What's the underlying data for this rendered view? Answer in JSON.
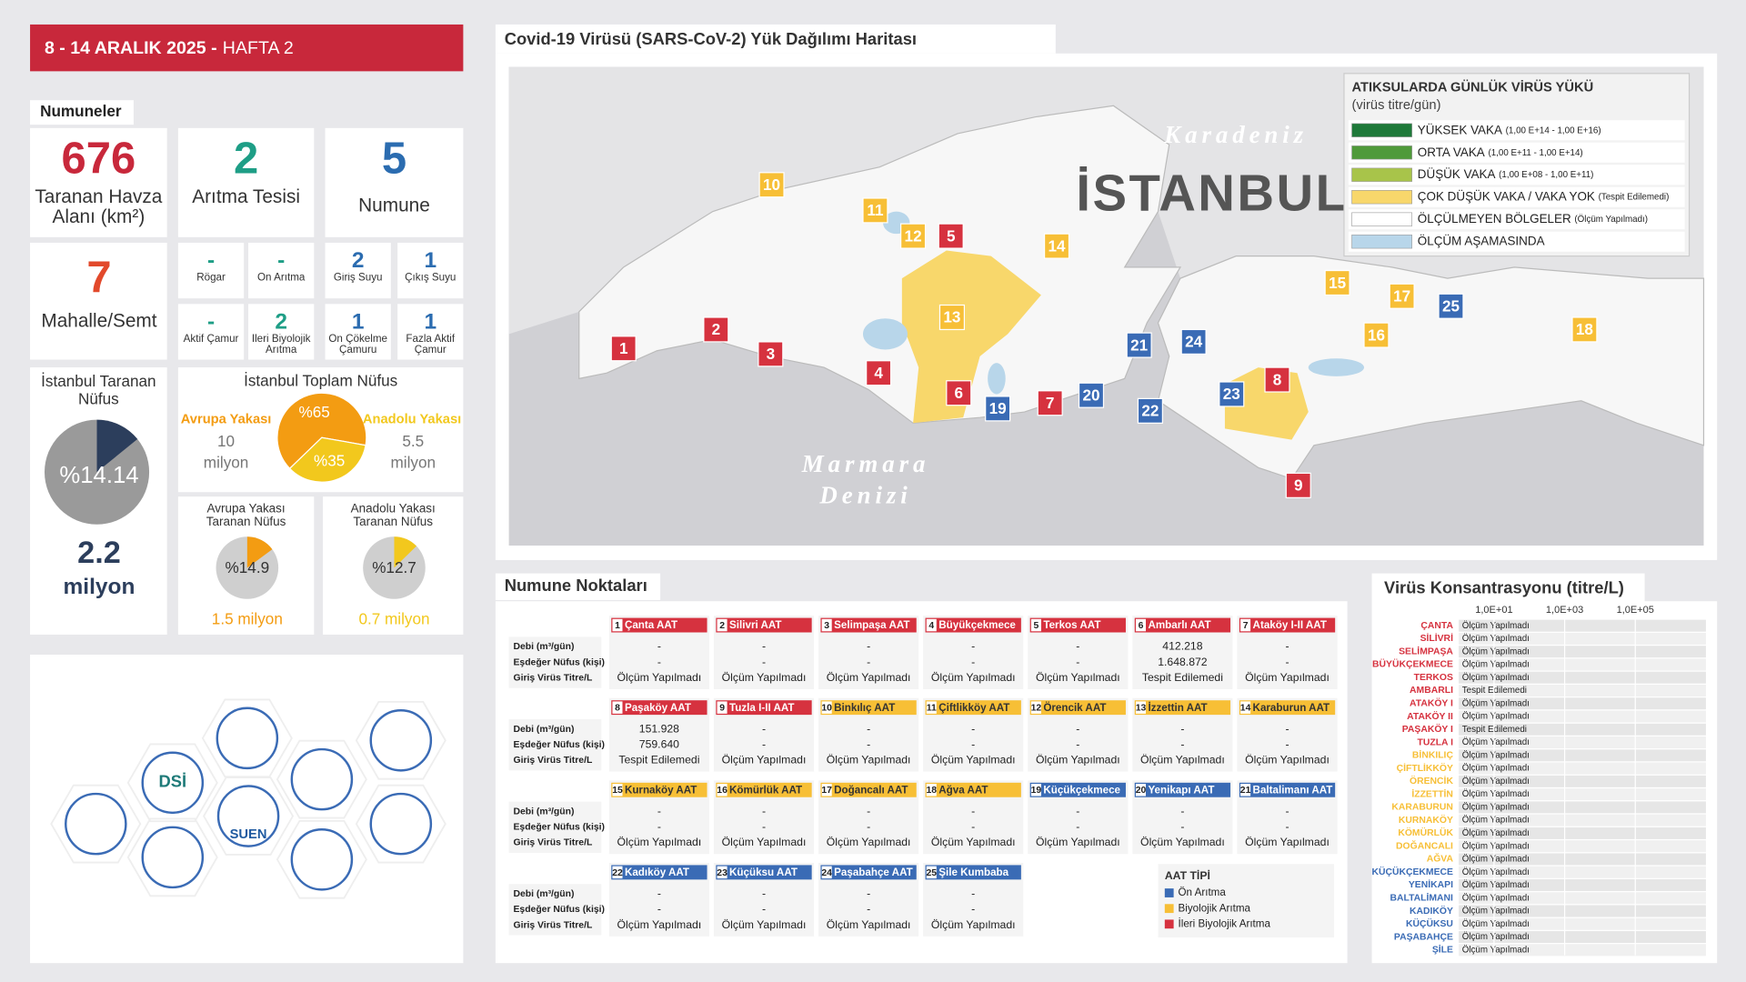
{
  "header": {
    "date": "8 - 14 ARALIK 2025 -",
    "week": "HAFTA 2"
  },
  "samples": {
    "title": "Numuneler",
    "main": [
      {
        "value": "676",
        "label": "Taranan Havza Alanı (km²)"
      },
      {
        "value": "2",
        "label": "Arıtma Tesisi"
      },
      {
        "value": "5",
        "label": "Numune"
      }
    ],
    "districts": {
      "value": "7",
      "label": "Mahalle/Semt"
    },
    "types": [
      {
        "value": "-",
        "label": "Rögar"
      },
      {
        "value": "-",
        "label": "Ön Arıtma"
      },
      {
        "value": "2",
        "label": "Giriş Suyu"
      },
      {
        "value": "1",
        "label": "Çıkış Suyu"
      },
      {
        "value": "-",
        "label": "Aktif Çamur"
      },
      {
        "value": "2",
        "label": "İleri Biyolojik Arıtma"
      },
      {
        "value": "1",
        "label": "Ön Çökelme Çamuru"
      },
      {
        "value": "1",
        "label": "Fazla Aktif Çamur"
      }
    ]
  },
  "population": {
    "screened": {
      "title": "İstanbul Taranan Nüfus",
      "value": 14.14,
      "value_label": "%14.14",
      "amount": "2.2",
      "unit": "milyon",
      "color": "#2c3e5c"
    },
    "total": {
      "title": "İstanbul Toplam Nüfus",
      "slices": [
        {
          "name": "Avrupa Yakası",
          "value": 65,
          "value_label": "%65",
          "amount": "10 milyon",
          "color": "#f39c12"
        },
        {
          "name": "Anadolu Yakası",
          "value": 35,
          "value_label": "%35",
          "amount": "5.5 milyon",
          "color": "#f2c81d"
        }
      ]
    },
    "sides": [
      {
        "title": "Avrupa Yakası Taranan Nüfus",
        "value": 14.9,
        "value_label": "%14.9",
        "amount": "1.5 milyon",
        "color": "#f39c12"
      },
      {
        "title": "Anadolu Yakası Taranan Nüfus",
        "value": 12.7,
        "value_label": "%12.7",
        "amount": "0.7 milyon",
        "color": "#f2c81d"
      }
    ]
  },
  "partners": {
    "labels": [
      "DSİ",
      "SUEN"
    ]
  },
  "map": {
    "title": "Covid-19 Virüsü (SARS-CoV-2) Yük Dağılımı Haritası",
    "labels": {
      "sea_north": "Karadeniz",
      "city": "İSTANBUL",
      "sea_south": "Marmara Denizi"
    },
    "legend": {
      "title": "ATIKSULARDA GÜNLÜK VİRÜS YÜKÜ",
      "subtitle": "(virüs titre/gün)",
      "items": [
        {
          "name": "YÜKSEK VAKA",
          "note": "(1,00 E+14 - 1,00 E+16)",
          "color": "#1f7a3a"
        },
        {
          "name": "ORTA VAKA",
          "note": "(1,00 E+11 - 1,00 E+14)",
          "color": "#4f9a3a"
        },
        {
          "name": "DÜŞÜK VAKA",
          "note": "(1,00 E+08 - 1,00 E+11)",
          "color": "#a8c44a"
        },
        {
          "name": "ÇOK DÜŞÜK VAKA / VAKA YOK",
          "note": "(Tespit Edilemedi)",
          "color": "#f8d76b"
        },
        {
          "name": "ÖLÇÜLMEYEN BÖLGELER",
          "note": "(Ölçüm Yapılmadı)",
          "color": "#ffffff"
        },
        {
          "name": "ÖLÇÜM AŞAMASINDA",
          "color": "#b8d6ea"
        }
      ]
    }
  },
  "stations": {
    "title": "Numune Noktaları",
    "row_labels": [
      "Debi (m³/gün)",
      "Eşdeğer Nüfus (kişi)",
      "Giriş Virüs Titre/L"
    ],
    "plants": [
      {
        "id": "1",
        "name": "Çanta AAT",
        "type": 2,
        "values": [
          "-",
          "-",
          "Ölçüm Yapılmadı"
        ]
      },
      {
        "id": "2",
        "name": "Silivri AAT",
        "type": 2,
        "values": [
          "-",
          "-",
          "Ölçüm Yapılmadı"
        ]
      },
      {
        "id": "3",
        "name": "Selimpaşa AAT",
        "type": 2,
        "values": [
          "-",
          "-",
          "Ölçüm Yapılmadı"
        ]
      },
      {
        "id": "4",
        "name": "Büyükçekmece",
        "type": 2,
        "values": [
          "-",
          "-",
          "Ölçüm Yapılmadı"
        ]
      },
      {
        "id": "5",
        "name": "Terkos AAT",
        "type": 2,
        "values": [
          "-",
          "-",
          "Ölçüm Yapılmadı"
        ]
      },
      {
        "id": "6",
        "name": "Ambarlı AAT",
        "type": 2,
        "values": [
          "412.218",
          "1.648.872",
          "Tespit Edilemedi"
        ]
      },
      {
        "id": "7",
        "name": "Ataköy I-II AAT",
        "type": 2,
        "values": [
          "-",
          "-",
          "Ölçüm Yapılmadı"
        ]
      },
      {
        "id": "8",
        "name": "Paşaköy AAT",
        "type": 2,
        "values": [
          "151.928",
          "759.640",
          "Tespit Edilemedi"
        ]
      },
      {
        "id": "9",
        "name": "Tuzla I-II AAT",
        "type": 2,
        "values": [
          "-",
          "-",
          "Ölçüm Yapılmadı"
        ]
      },
      {
        "id": "10",
        "name": "Binkılıç AAT",
        "type": 1,
        "values": [
          "-",
          "-",
          "Ölçüm Yapılmadı"
        ]
      },
      {
        "id": "11",
        "name": "Çiftlikköy AAT",
        "type": 1,
        "values": [
          "-",
          "-",
          "Ölçüm Yapılmadı"
        ]
      },
      {
        "id": "12",
        "name": "Örencik AAT",
        "type": 1,
        "values": [
          "-",
          "-",
          "Ölçüm Yapılmadı"
        ]
      },
      {
        "id": "13",
        "name": "İzzettin AAT",
        "type": 1,
        "values": [
          "-",
          "-",
          "Ölçüm Yapılmadı"
        ]
      },
      {
        "id": "14",
        "name": "Karaburun AAT",
        "type": 1,
        "values": [
          "-",
          "-",
          "Ölçüm Yapılmadı"
        ]
      },
      {
        "id": "15",
        "name": "Kurnaköy AAT",
        "type": 1,
        "values": [
          "-",
          "-",
          "Ölçüm Yapılmadı"
        ]
      },
      {
        "id": "16",
        "name": "Kömürlük AAT",
        "type": 1,
        "values": [
          "-",
          "-",
          "Ölçüm Yapılmadı"
        ]
      },
      {
        "id": "17",
        "name": "Doğancalı AAT",
        "type": 1,
        "values": [
          "-",
          "-",
          "Ölçüm Yapılmadı"
        ]
      },
      {
        "id": "18",
        "name": "Ağva AAT",
        "type": 1,
        "values": [
          "-",
          "-",
          "Ölçüm Yapılmadı"
        ]
      },
      {
        "id": "19",
        "name": "Küçükçekmece",
        "type": 0,
        "values": [
          "-",
          "-",
          "Ölçüm Yapılmadı"
        ]
      },
      {
        "id": "20",
        "name": "Yenikapı AAT",
        "type": 0,
        "values": [
          "-",
          "-",
          "Ölçüm Yapılmadı"
        ]
      },
      {
        "id": "21",
        "name": "Baltalimanı AAT",
        "type": 0,
        "values": [
          "-",
          "-",
          "Ölçüm Yapılmadı"
        ]
      },
      {
        "id": "22",
        "name": "Kadıköy AAT",
        "type": 0,
        "values": [
          "-",
          "-",
          "Ölçüm Yapılmadı"
        ]
      },
      {
        "id": "23",
        "name": "Küçüksu AAT",
        "type": 0,
        "values": [
          "-",
          "-",
          "Ölçüm Yapılmadı"
        ]
      },
      {
        "id": "24",
        "name": "Paşabahçe AAT",
        "type": 0,
        "values": [
          "-",
          "-",
          "Ölçüm Yapılmadı"
        ]
      },
      {
        "id": "25",
        "name": "Şile Kumbaba",
        "type": 0,
        "values": [
          "-",
          "-",
          "Ölçüm Yapılmadı"
        ]
      }
    ],
    "legend": {
      "title": "AAT TİPİ",
      "types": [
        {
          "name": "Ön Arıtma",
          "color": "#3a6bb5"
        },
        {
          "name": "Biyolojik Arıtma",
          "color": "#f7bf36"
        },
        {
          "name": "İleri Biyolojik Arıtma",
          "color": "#d6323f"
        }
      ]
    }
  },
  "concentration": {
    "title": "Virüs Konsantrasyonu (titre/L)",
    "log": true,
    "xlim": [
      1,
      10000000
    ],
    "xticks": [
      {
        "value": 10,
        "label": "1,0E+01"
      },
      {
        "value": 1000,
        "label": "1,0E+03"
      },
      {
        "value": 100000,
        "label": "1,0E+05"
      }
    ],
    "categories": [
      "ÇANTA",
      "SİLİVRİ",
      "SELİMPAŞA",
      "BÜYÜKÇEKMECE",
      "TERKOS",
      "AMBARLI",
      "ATAKÖY I",
      "ATAKÖY II",
      "PAŞAKÖY I",
      "TUZLA I",
      "BİNKILIÇ",
      "ÇİFTLİKKÖY",
      "ÖRENCİK",
      "İZZETTİN",
      "KARABURUN",
      "KURNAKÖY",
      "KÖMÜRLÜK",
      "DOĞANCALI",
      "AĞVA",
      "KÜÇÜKÇEKMECE",
      "YENİKAPI",
      "BALTALİMANI",
      "KADIKÖY",
      "KÜÇÜKSU",
      "PAŞABAHÇE",
      "ŞİLE"
    ],
    "category_types": [
      2,
      2,
      2,
      2,
      2,
      2,
      2,
      2,
      2,
      2,
      1,
      1,
      1,
      1,
      1,
      1,
      1,
      1,
      1,
      0,
      0,
      0,
      0,
      0,
      0,
      0
    ],
    "statuses": [
      "Ölçüm Yapılmadı",
      "Ölçüm Yapılmadı",
      "Ölçüm Yapılmadı",
      "Ölçüm Yapılmadı",
      "Ölçüm Yapılmadı",
      "Tespit Edilemedi",
      "Ölçüm Yapılmadı",
      "Ölçüm Yapılmadı",
      "Tespit Edilemedi",
      "Ölçüm Yapılmadı",
      "Ölçüm Yapılmadı",
      "Ölçüm Yapılmadı",
      "Ölçüm Yapılmadı",
      "Ölçüm Yapılmadı",
      "Ölçüm Yapılmadı",
      "Ölçüm Yapılmadı",
      "Ölçüm Yapılmadı",
      "Ölçüm Yapılmadı",
      "Ölçüm Yapılmadı",
      "Ölçüm Yapılmadı",
      "Ölçüm Yapılmadı",
      "Ölçüm Yapılmadı",
      "Ölçüm Yapılmadı",
      "Ölçüm Yapılmadı",
      "Ölçüm Yapılmadı",
      "Ölçüm Yapılmadı"
    ]
  }
}
